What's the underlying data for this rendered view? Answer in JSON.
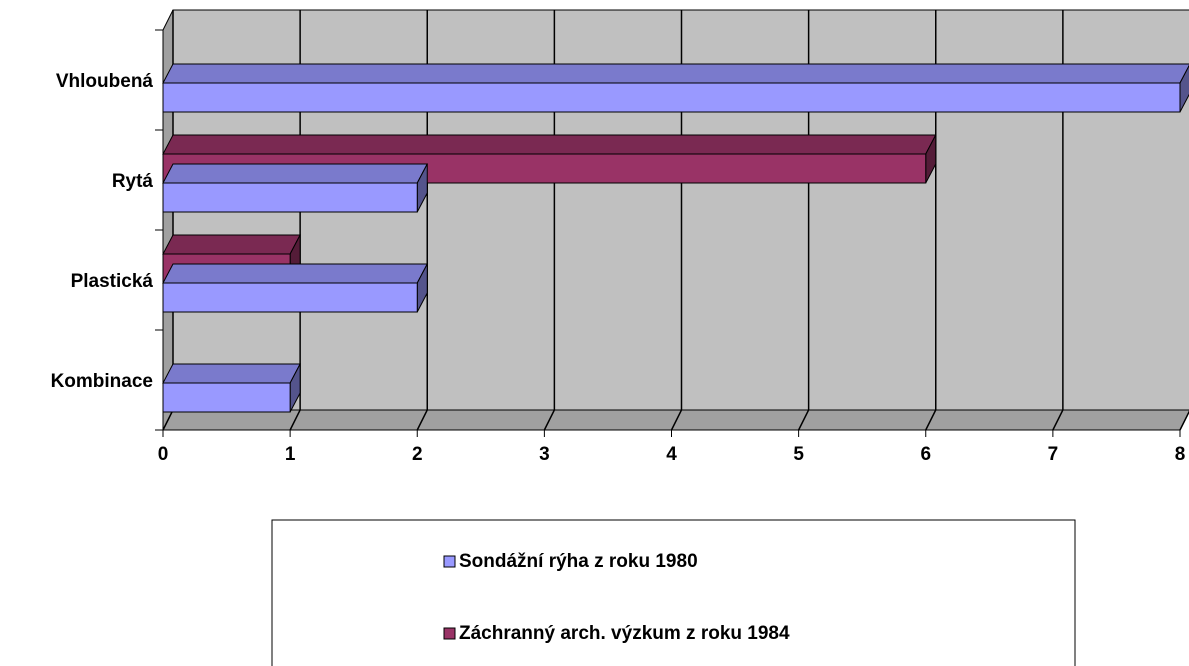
{
  "chart_data": {
    "type": "bar3d_horizontal",
    "categories": [
      "Vhloubená",
      "Rytá",
      "Plastická",
      "Kombinace"
    ],
    "series": [
      {
        "name": "Sondážní rýha z roku 1980",
        "color": "#9999ff",
        "values": [
          8,
          2,
          2,
          1
        ]
      },
      {
        "name": "Záchranný arch. výzkum z roku 1984",
        "color": "#993366",
        "values": [
          0,
          6,
          1,
          0
        ]
      }
    ],
    "xlim": [
      0,
      8
    ],
    "xticks": [
      0,
      1,
      2,
      3,
      4,
      5,
      6,
      7,
      8
    ],
    "grid": true,
    "legend": "bottom"
  }
}
